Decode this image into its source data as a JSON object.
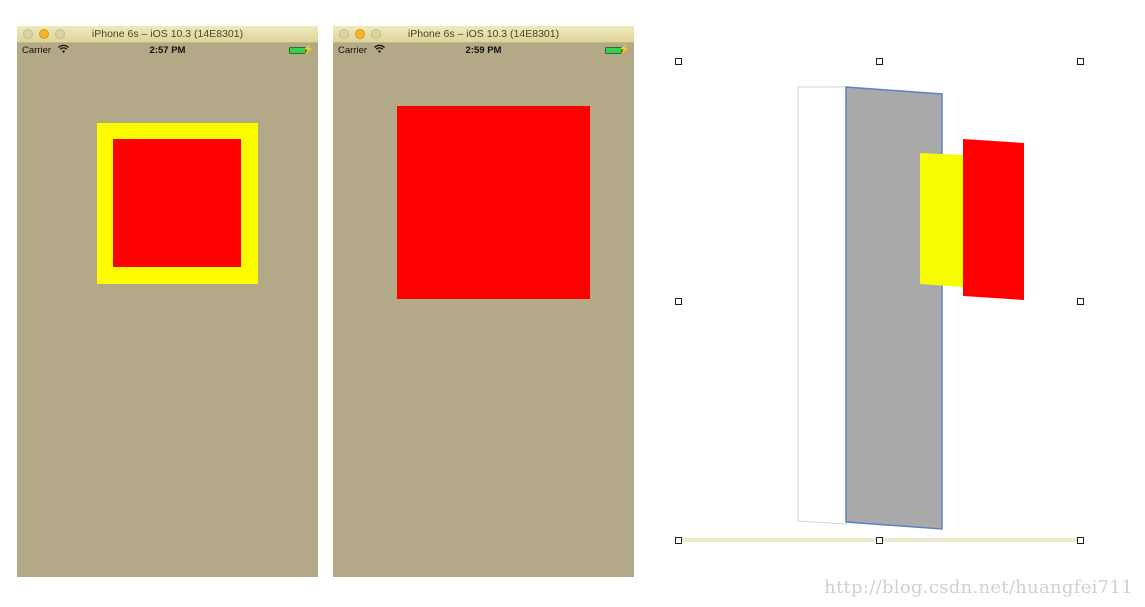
{
  "simulators": [
    {
      "window_title": "iPhone 6s – iOS 10.3 (14E8301)",
      "carrier": "Carrier",
      "time": "2:57 PM"
    },
    {
      "window_title": "iPhone 6s – iOS 10.3 (14E8301)",
      "carrier": "Carrier",
      "time": "2:59 PM"
    }
  ],
  "colors": {
    "simulator_background": "#b3a986",
    "yellow": "#fdfd00",
    "red": "#ff0000",
    "gray_layer": "#a9a9a9",
    "battery": "#32d14f"
  },
  "icons": [
    "wifi-icon",
    "battery-icon",
    "charging-bolt-icon"
  ],
  "watermark": "http://blog.csdn.net/huangfei711"
}
